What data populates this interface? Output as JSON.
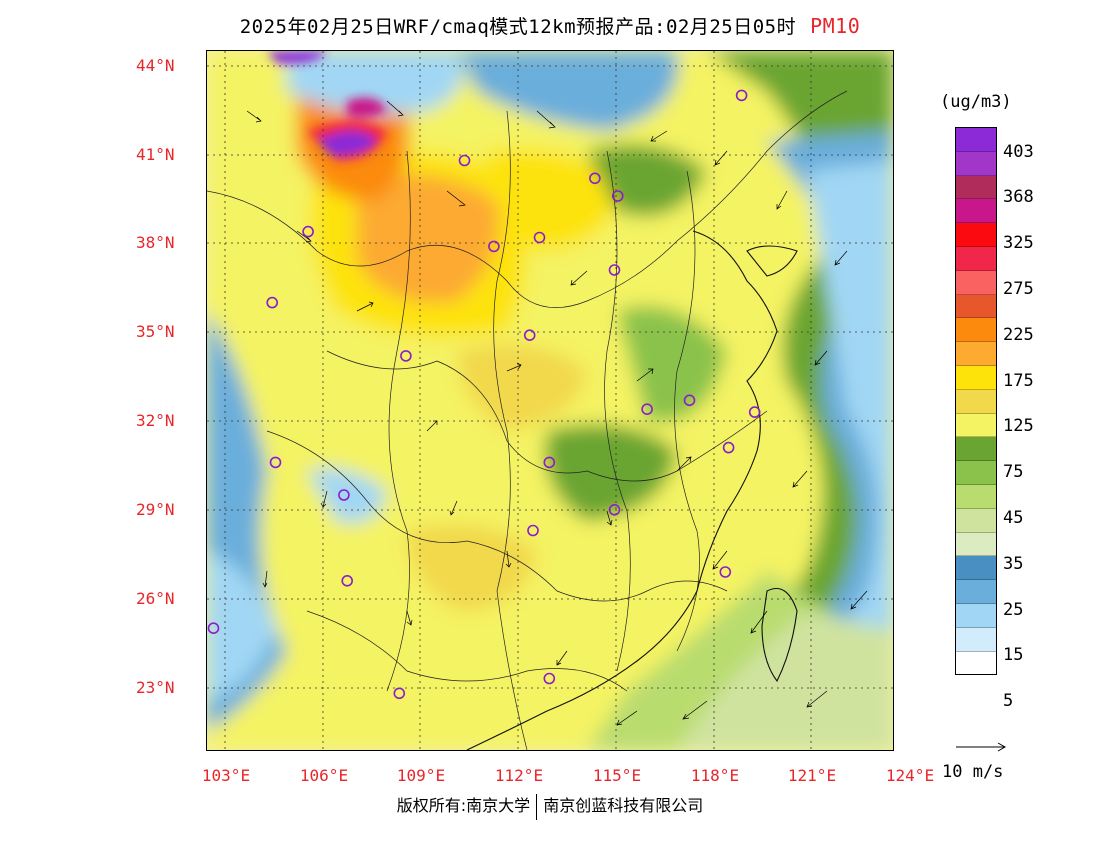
{
  "header": {
    "title": "2025年02月25日WRF/cmaq模式12km预报产品:02月25日05时",
    "pollutant": "PM10"
  },
  "axes": {
    "lat_labels": [
      "44°N",
      "41°N",
      "38°N",
      "35°N",
      "32°N",
      "29°N",
      "26°N",
      "23°N"
    ],
    "lon_labels": [
      "103°E",
      "106°E",
      "109°E",
      "112°E",
      "115°E",
      "118°E",
      "121°E",
      "124°E"
    ]
  },
  "legend": {
    "unit": "(ug/m3)",
    "labels": [
      "403",
      "368",
      "325",
      "275",
      "225",
      "175",
      "125",
      "75",
      "45",
      "35",
      "25",
      "15",
      "5"
    ],
    "colors": [
      "#8b2ad6",
      "#a236c8",
      "#b02d5b",
      "#c8178a",
      "#fb0a10",
      "#f0264a",
      "#fa6161",
      "#e8562c",
      "#fb8a0d",
      "#fcaa30",
      "#fde30a",
      "#f2d84b",
      "#f4f363",
      "#6aa531",
      "#8ac24c",
      "#b9dc6e",
      "#cfe39f",
      "#dcebc1",
      "#4a8fc2",
      "#6aaedb",
      "#a1d7f4",
      "#d3ecfb",
      "#ffffff"
    ],
    "wind_reference": "10 m/s"
  },
  "stations": [
    {
      "lon": 118.8,
      "lat": 43.0
    },
    {
      "lon": 110.3,
      "lat": 40.8
    },
    {
      "lon": 114.3,
      "lat": 40.2
    },
    {
      "lon": 115.0,
      "lat": 39.6
    },
    {
      "lon": 105.5,
      "lat": 38.4
    },
    {
      "lon": 111.2,
      "lat": 37.9
    },
    {
      "lon": 112.6,
      "lat": 38.2
    },
    {
      "lon": 114.9,
      "lat": 37.1
    },
    {
      "lon": 104.4,
      "lat": 36.0
    },
    {
      "lon": 112.3,
      "lat": 34.9
    },
    {
      "lon": 108.5,
      "lat": 34.2
    },
    {
      "lon": 115.9,
      "lat": 32.4
    },
    {
      "lon": 117.2,
      "lat": 32.7
    },
    {
      "lon": 119.2,
      "lat": 32.3
    },
    {
      "lon": 118.4,
      "lat": 31.1
    },
    {
      "lon": 112.9,
      "lat": 30.6
    },
    {
      "lon": 104.5,
      "lat": 30.6
    },
    {
      "lon": 106.6,
      "lat": 29.5
    },
    {
      "lon": 114.9,
      "lat": 29.0
    },
    {
      "lon": 112.4,
      "lat": 28.3
    },
    {
      "lon": 118.3,
      "lat": 26.9
    },
    {
      "lon": 106.7,
      "lat": 26.6
    },
    {
      "lon": 102.6,
      "lat": 25.0
    },
    {
      "lon": 108.3,
      "lat": 22.8
    },
    {
      "lon": 112.9,
      "lat": 23.3
    }
  ],
  "footer": {
    "left": "版权所有:南京大学",
    "right": "南京创蓝科技有限公司"
  }
}
